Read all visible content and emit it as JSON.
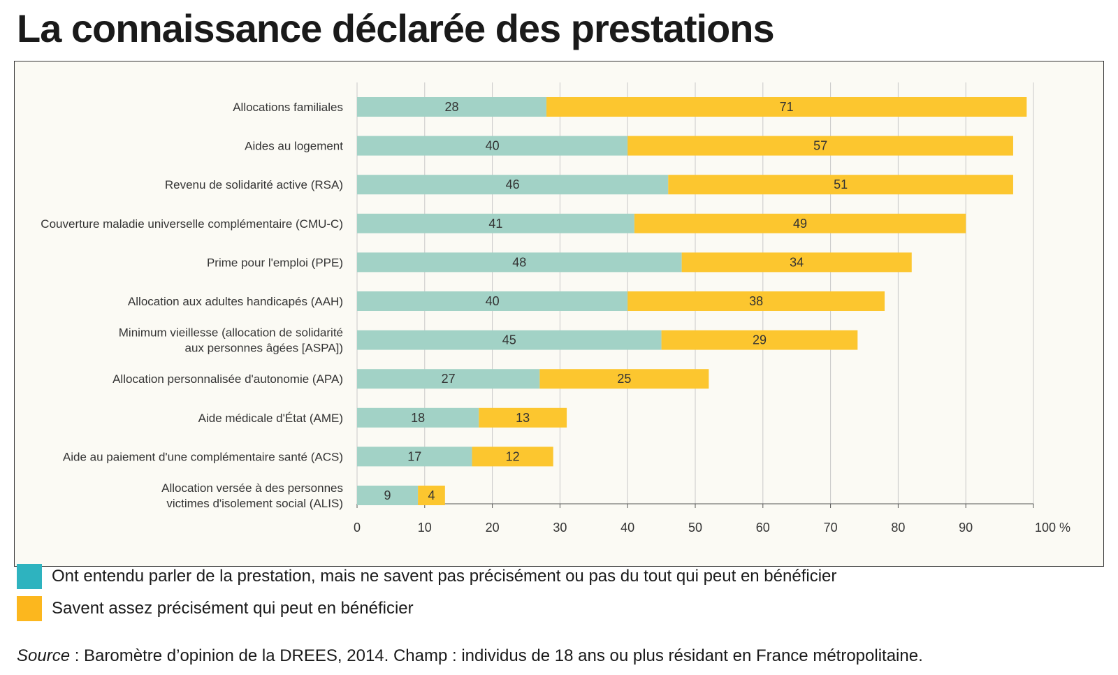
{
  "title": "La connaissance déclarée des prestations",
  "colors": {
    "series1": "#a2d2c6",
    "series2": "#fcc62f",
    "legend_swatch1": "#2eb3bf",
    "legend_swatch2": "#fcb71e",
    "grid": "#c8c8c8",
    "axis": "#555555"
  },
  "legend": [
    "Ont entendu parler de la prestation, mais ne savent pas précisément ou pas du tout qui peut en bénéficier",
    "Savent assez précisément qui peut en bénéficier"
  ],
  "source": {
    "label": "Source",
    "text": " : Baromètre d’opinion de la DREES, 2014. Champ : individus de 18 ans ou plus résidant en France métropolitaine."
  },
  "chart_data": {
    "type": "bar",
    "orientation": "horizontal",
    "stacked": true,
    "categories": [
      [
        "Allocations familiales"
      ],
      [
        "Aides au logement"
      ],
      [
        "Revenu de solidarité active (RSA)"
      ],
      [
        "Couverture maladie universelle complémentaire (CMU-C)"
      ],
      [
        "Prime pour l'emploi (PPE)"
      ],
      [
        "Allocation aux adultes handicapés (AAH)"
      ],
      [
        "Minimum vieillesse (allocation de solidarité",
        "aux personnes âgées [ASPA])"
      ],
      [
        "Allocation personnalisée d'autonomie (APA)"
      ],
      [
        "Aide médicale d'État (AME)"
      ],
      [
        "Aide au paiement d'une complémentaire santé (ACS)"
      ],
      [
        "Allocation versée à des personnes",
        "victimes d'isolement social (ALIS)"
      ]
    ],
    "series": [
      {
        "name": "Ont entendu parler de la prestation, mais ne savent pas précisément ou pas du tout qui peut en bénéficier",
        "values": [
          28,
          40,
          46,
          41,
          48,
          40,
          45,
          27,
          18,
          17,
          9
        ]
      },
      {
        "name": "Savent assez précisément qui peut en bénéficier",
        "values": [
          71,
          57,
          51,
          49,
          34,
          38,
          29,
          25,
          13,
          12,
          4
        ]
      }
    ],
    "xlim": [
      0,
      100
    ],
    "x_ticks": [
      0,
      10,
      20,
      30,
      40,
      50,
      60,
      70,
      80,
      90,
      100
    ],
    "x_tick_labels": [
      "0",
      "10",
      "20",
      "30",
      "40",
      "50",
      "60",
      "70",
      "80",
      "90",
      "100 %"
    ],
    "grid": true,
    "legend_position": "bottom"
  }
}
